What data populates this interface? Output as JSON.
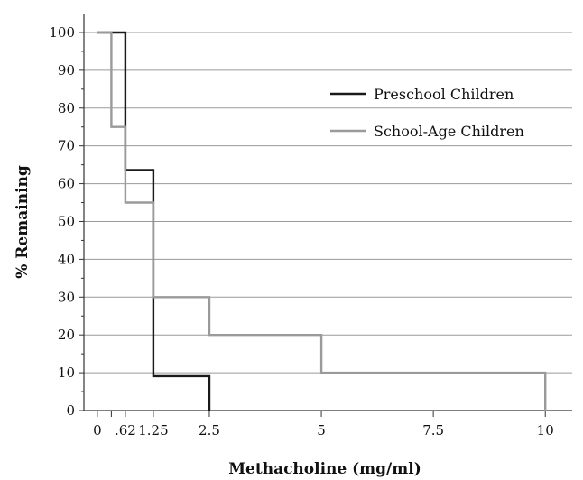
{
  "chart_data": {
    "type": "line",
    "step": true,
    "title": "",
    "xlabel": "Methacholine (mg/ml)",
    "ylabel": "% Remaining",
    "xlim": [
      -0.3,
      10.6
    ],
    "ylim": [
      0,
      105
    ],
    "x_ticks": [
      {
        "value": 0,
        "label": "0"
      },
      {
        "value": 0.3125,
        "label": ""
      },
      {
        "value": 0.625,
        "label": ".62"
      },
      {
        "value": 1.25,
        "label": "1.25"
      },
      {
        "value": 2.5,
        "label": "2.5"
      },
      {
        "value": 5,
        "label": "5"
      },
      {
        "value": 7.5,
        "label": "7.5"
      },
      {
        "value": 10,
        "label": "10"
      }
    ],
    "y_ticks": [
      0,
      10,
      20,
      30,
      40,
      50,
      60,
      70,
      80,
      90,
      100
    ],
    "grid": "horizontal",
    "legend_position": "top-right",
    "series": [
      {
        "name": "Preschool Children",
        "color": "#1a1a1a",
        "points": [
          {
            "x": 0,
            "y": 100
          },
          {
            "x": 0.625,
            "y": 100
          },
          {
            "x": 0.625,
            "y": 63.6
          },
          {
            "x": 1.25,
            "y": 63.6
          },
          {
            "x": 1.25,
            "y": 9.1
          },
          {
            "x": 2.5,
            "y": 9.1
          },
          {
            "x": 2.5,
            "y": 0
          }
        ]
      },
      {
        "name": "School-Age Children",
        "color": "#9a9a9a",
        "points": [
          {
            "x": 0,
            "y": 100
          },
          {
            "x": 0.3125,
            "y": 100
          },
          {
            "x": 0.3125,
            "y": 75
          },
          {
            "x": 0.625,
            "y": 75
          },
          {
            "x": 0.625,
            "y": 55
          },
          {
            "x": 1.25,
            "y": 55
          },
          {
            "x": 1.25,
            "y": 30
          },
          {
            "x": 2.5,
            "y": 30
          },
          {
            "x": 2.5,
            "y": 20
          },
          {
            "x": 5,
            "y": 20
          },
          {
            "x": 5,
            "y": 10
          },
          {
            "x": 10,
            "y": 10
          },
          {
            "x": 10,
            "y": 0
          }
        ]
      }
    ]
  }
}
